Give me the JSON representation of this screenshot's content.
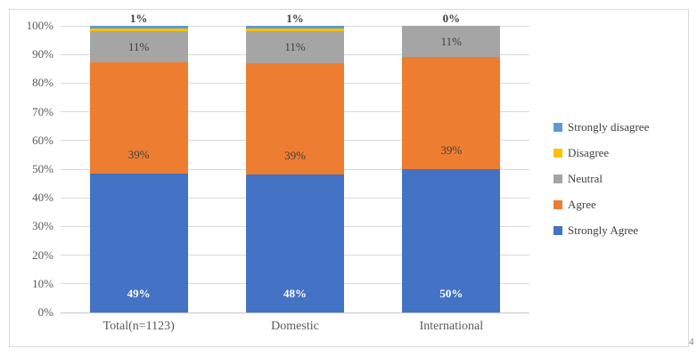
{
  "footnote_marker": "4",
  "colors": {
    "strongly_agree": "#4472C4",
    "agree": "#ED7D31",
    "neutral": "#A5A5A5",
    "disagree": "#FFC000",
    "strongly_disagree": "#5B9BD5",
    "gridline": "#D9D9D9",
    "axis_text": "#595959",
    "data_label_text": "#404040",
    "frame_border": "#D9D9D9",
    "background": "#FFFFFF"
  },
  "chart_data": {
    "type": "bar",
    "subtype": "stacked-100-percent-column",
    "title": "",
    "xlabel": "",
    "ylabel": "",
    "categories": [
      "Total(n=1123)",
      "Domestic",
      "International"
    ],
    "series": [
      {
        "name": "Strongly Agree",
        "color": "#4472C4",
        "values": [
          49,
          48,
          50
        ],
        "labels": [
          "49%",
          "48%",
          "50%"
        ],
        "label_color": "#ffffff",
        "label_weight": "bold",
        "label_position": "inside-base"
      },
      {
        "name": "Agree",
        "color": "#ED7D31",
        "values": [
          39,
          39,
          39
        ],
        "labels": [
          "39%",
          "39%",
          "39%"
        ],
        "label_color": "#404040",
        "label_weight": "normal",
        "label_position": "inside-base"
      },
      {
        "name": "Neutral",
        "color": "#A5A5A5",
        "values": [
          11,
          11,
          11
        ],
        "labels": [
          "11%",
          "11%",
          "11%"
        ],
        "label_color": "#404040",
        "label_weight": "normal",
        "label_position": "center"
      },
      {
        "name": "Disagree",
        "color": "#FFC000",
        "values": [
          1,
          1,
          0
        ],
        "labels": null,
        "label_color": "#404040",
        "label_weight": "normal",
        "label_position": "none"
      },
      {
        "name": "Strongly disagree",
        "color": "#5B9BD5",
        "values": [
          1,
          1,
          0
        ],
        "labels": [
          "1%",
          "1%",
          "0%"
        ],
        "label_color": "#404040",
        "label_weight": "bold",
        "label_position": "outside-top"
      }
    ],
    "y_axis": {
      "min": 0,
      "max": 100,
      "tick_step": 10,
      "ticks_top_to_bottom": [
        "100%",
        "90%",
        "80%",
        "70%",
        "60%",
        "50%",
        "40%",
        "30%",
        "20%",
        "10%",
        "0%"
      ],
      "grid": true
    },
    "legend": {
      "position": "right",
      "entries_top_to_bottom": [
        {
          "label": "Strongly disagree",
          "color": "#5B9BD5"
        },
        {
          "label": "Disagree",
          "color": "#FFC000"
        },
        {
          "label": "Neutral",
          "color": "#A5A5A5"
        },
        {
          "label": "Agree",
          "color": "#ED7D31"
        },
        {
          "label": "Strongly Agree",
          "color": "#4472C4"
        }
      ]
    }
  }
}
